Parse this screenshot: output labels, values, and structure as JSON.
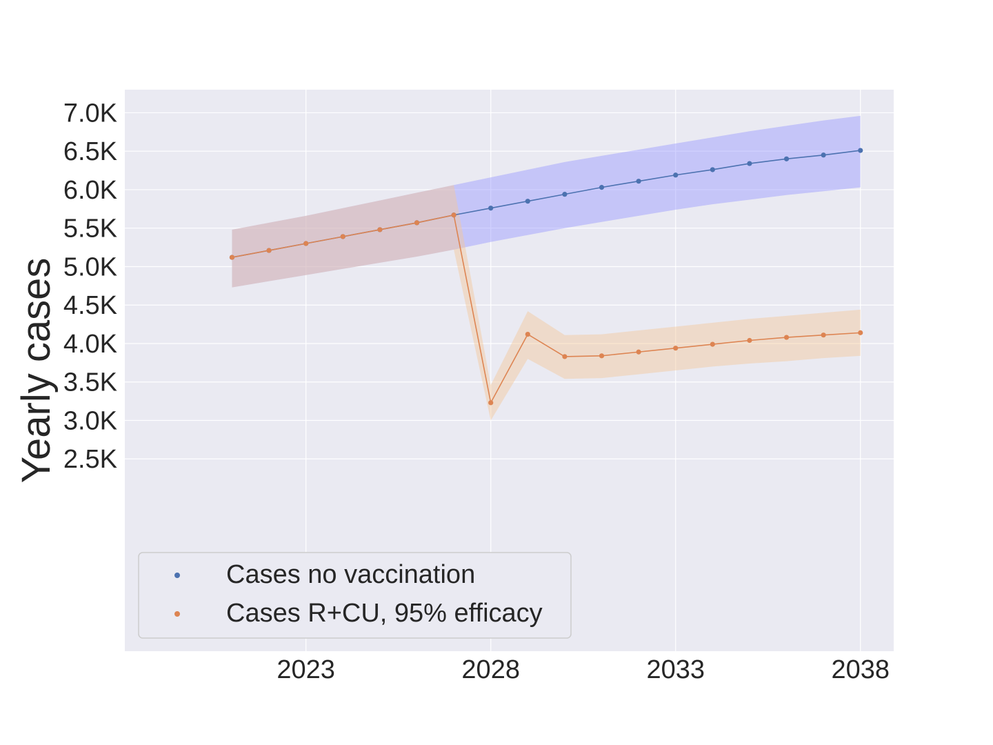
{
  "chart_data": {
    "type": "line",
    "title": "",
    "xlabel": "",
    "ylabel": "Yearly cases",
    "x": [
      2021,
      2022,
      2023,
      2024,
      2025,
      2026,
      2027,
      2028,
      2029,
      2030,
      2031,
      2032,
      2033,
      2034,
      2035,
      2036,
      2037,
      2038
    ],
    "xticks": [
      2023,
      2028,
      2033,
      2038
    ],
    "xlim": [
      2018.1,
      2038.9
    ],
    "yticks": [
      2500,
      3000,
      3500,
      4000,
      4500,
      5000,
      5500,
      6000,
      6500,
      7000
    ],
    "ytick_labels": [
      "2.5K",
      "3.0K",
      "3.5K",
      "4.0K",
      "4.5K",
      "5.0K",
      "5.5K",
      "6.0K",
      "6.5K",
      "7.0K"
    ],
    "ylim": [
      0,
      7300
    ],
    "grid": true,
    "legend_position": "lower-left",
    "series": [
      {
        "name": "Cases no vaccination",
        "color": "#4c72b0",
        "band_color": "#9999ff",
        "x": [
          2021,
          2022,
          2023,
          2024,
          2025,
          2026,
          2027,
          2028,
          2029,
          2030,
          2031,
          2032,
          2033,
          2034,
          2035,
          2036,
          2037,
          2038
        ],
        "values": [
          5120,
          5210,
          5300,
          5390,
          5480,
          5570,
          5670,
          5760,
          5850,
          5940,
          6030,
          6110,
          6190,
          6260,
          6340,
          6400,
          6450,
          6510
        ],
        "lower": [
          4730,
          4810,
          4890,
          4970,
          5050,
          5130,
          5220,
          5320,
          5410,
          5500,
          5580,
          5660,
          5740,
          5810,
          5870,
          5930,
          5980,
          6030
        ],
        "upper": [
          5480,
          5570,
          5660,
          5760,
          5860,
          5960,
          6060,
          6160,
          6260,
          6360,
          6440,
          6520,
          6600,
          6680,
          6760,
          6830,
          6900,
          6960
        ]
      },
      {
        "name": "Cases R+CU, 95% efficacy",
        "color": "#dd8452",
        "band_color": "#f5c89a",
        "x": [
          2021,
          2022,
          2023,
          2024,
          2025,
          2026,
          2027,
          2028,
          2029,
          2030,
          2031,
          2032,
          2033,
          2034,
          2035,
          2036,
          2037,
          2038
        ],
        "values": [
          5120,
          5210,
          5300,
          5390,
          5480,
          5570,
          5670,
          3230,
          4120,
          3830,
          3840,
          3890,
          3940,
          3990,
          4040,
          4080,
          4110,
          4140
        ],
        "lower": [
          4730,
          4810,
          4890,
          4970,
          5050,
          5130,
          5220,
          3000,
          3800,
          3540,
          3550,
          3600,
          3650,
          3700,
          3740,
          3770,
          3810,
          3840
        ],
        "upper": [
          5480,
          5570,
          5660,
          5760,
          5860,
          5960,
          6060,
          3460,
          4420,
          4110,
          4120,
          4170,
          4220,
          4270,
          4320,
          4360,
          4400,
          4440
        ]
      }
    ]
  }
}
